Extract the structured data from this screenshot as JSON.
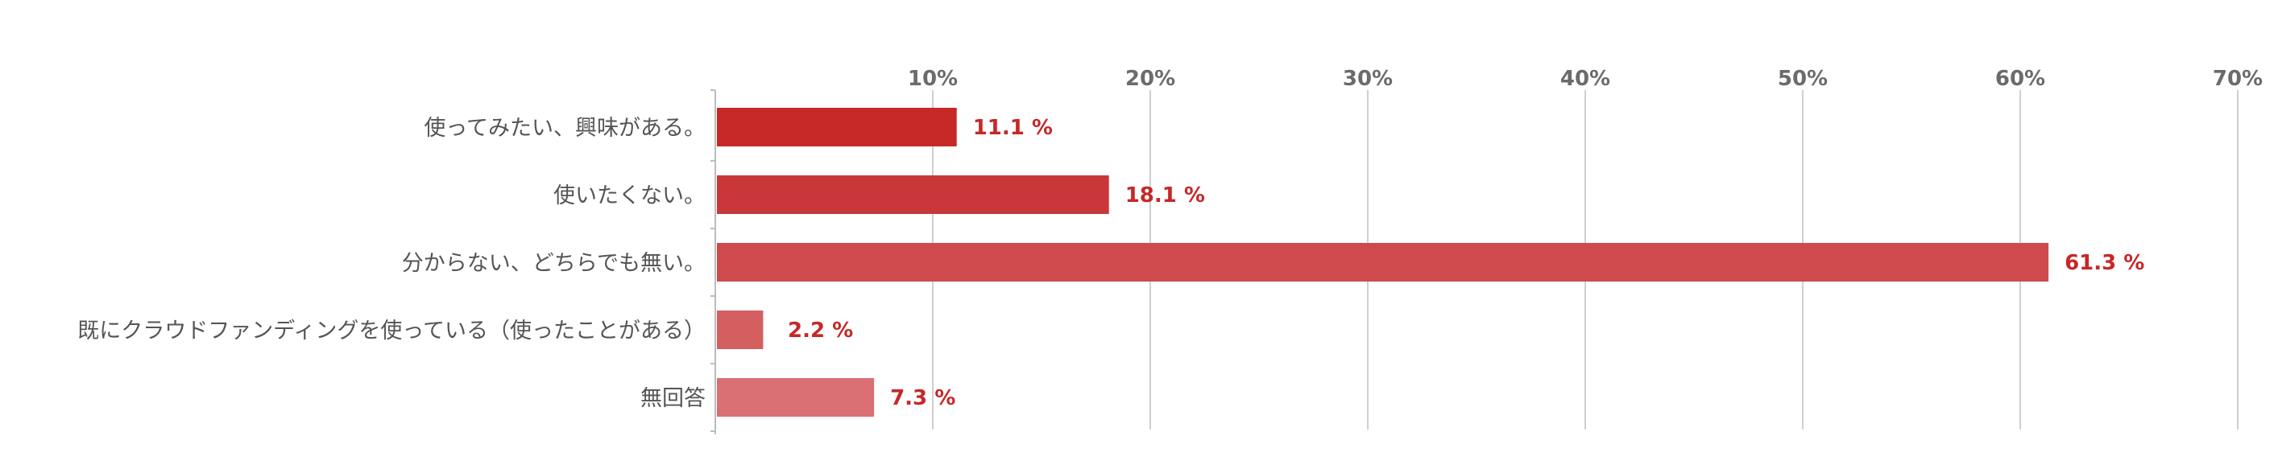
{
  "chart_data": {
    "type": "bar",
    "orientation": "horizontal",
    "title": "",
    "xlabel": "",
    "ylabel": "",
    "categories": [
      "使ってみたい、興味がある。",
      "使いたくない。",
      "分からない、どちらでも無い。",
      "既にクラウドファンディングを使っている（使ったことがある）",
      "無回答"
    ],
    "values": [
      11.1,
      18.1,
      61.3,
      2.2,
      7.3
    ],
    "value_labels": [
      "11.1 %",
      "18.1 %",
      "61.3 %",
      "2.2 %",
      "7.3 %"
    ],
    "xlim": [
      0,
      70
    ],
    "ticks": [
      10,
      20,
      30,
      40,
      50,
      60,
      70
    ],
    "tick_labels": [
      "10%",
      "20%",
      "30%",
      "40%",
      "50%",
      "60%",
      "70%"
    ],
    "grid": true,
    "legend": "none",
    "colors": {
      "bars": [
        "#c62828",
        "#c9373a",
        "#ce4a4d",
        "#d45f61",
        "#da7073"
      ],
      "value_labels": "#c62828",
      "grid": "#cfcfcf",
      "tick_labels": "#6b6b6b",
      "category_labels": "#555555"
    }
  }
}
